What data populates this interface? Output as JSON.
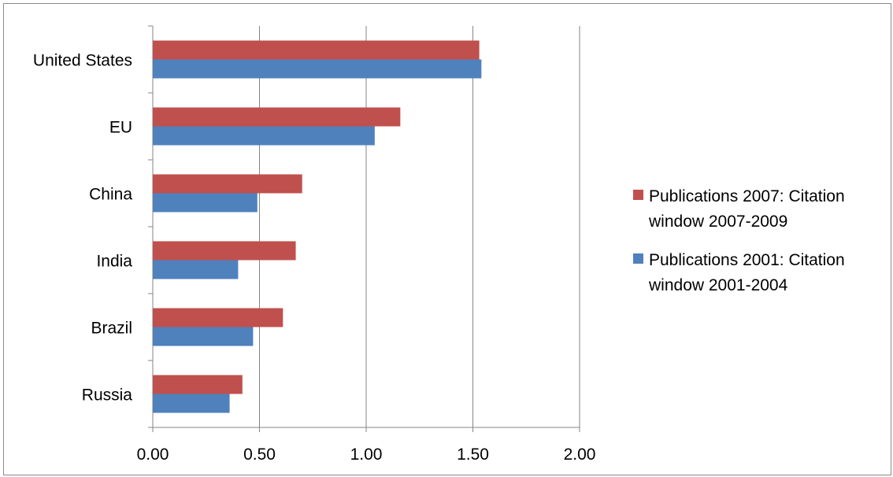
{
  "chart_data": {
    "type": "bar",
    "orientation": "horizontal",
    "categories": [
      "United States",
      "EU",
      "China",
      "India",
      "Brazil",
      "Russia"
    ],
    "series": [
      {
        "name": "Publications 2007: Citation window 2007-2009",
        "color": "#c0504d",
        "values": [
          1.53,
          1.16,
          0.7,
          0.67,
          0.61,
          0.42
        ]
      },
      {
        "name": "Publications 2001: Citation window 2001-2004",
        "color": "#4f81bd",
        "values": [
          1.54,
          1.04,
          0.49,
          0.4,
          0.47,
          0.36
        ]
      }
    ],
    "x_ticks": [
      "0.00",
      "0.50",
      "1.00",
      "1.50",
      "2.00"
    ],
    "xlim": [
      0,
      2
    ],
    "grid": "vertical major",
    "legend_position": "right",
    "legend_lines": [
      [
        "Publications 2007: Citation",
        "window 2007-2009"
      ],
      [
        "Publications 2001: Citation",
        "window 2001-2004"
      ]
    ]
  }
}
